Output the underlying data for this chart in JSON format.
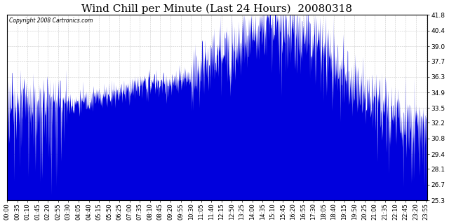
{
  "title": "Wind Chill per Minute (Last 24 Hours)  20080318",
  "copyright": "Copyright 2008 Cartronics.com",
  "ylabel_right": [
    "41.8",
    "40.4",
    "39.0",
    "37.7",
    "36.3",
    "34.9",
    "33.5",
    "32.2",
    "30.8",
    "29.4",
    "28.1",
    "26.7",
    "25.3"
  ],
  "ymin": 25.3,
  "ymax": 41.8,
  "line_color": "#0000dd",
  "bg_color": "#ffffff",
  "plot_bg_color": "#ffffff",
  "grid_color": "#bbbbbb",
  "title_fontsize": 11,
  "tick_fontsize": 6,
  "x_tick_labels": [
    "00:00",
    "00:35",
    "01:10",
    "01:45",
    "02:20",
    "02:55",
    "03:30",
    "04:05",
    "04:40",
    "05:15",
    "05:50",
    "06:25",
    "07:00",
    "07:35",
    "08:10",
    "08:45",
    "09:20",
    "09:55",
    "10:30",
    "11:05",
    "11:40",
    "12:15",
    "12:50",
    "13:25",
    "14:00",
    "14:35",
    "15:10",
    "15:45",
    "16:20",
    "16:55",
    "17:30",
    "18:05",
    "18:40",
    "19:15",
    "19:50",
    "20:25",
    "21:00",
    "21:35",
    "22:10",
    "22:45",
    "23:20",
    "23:55"
  ]
}
